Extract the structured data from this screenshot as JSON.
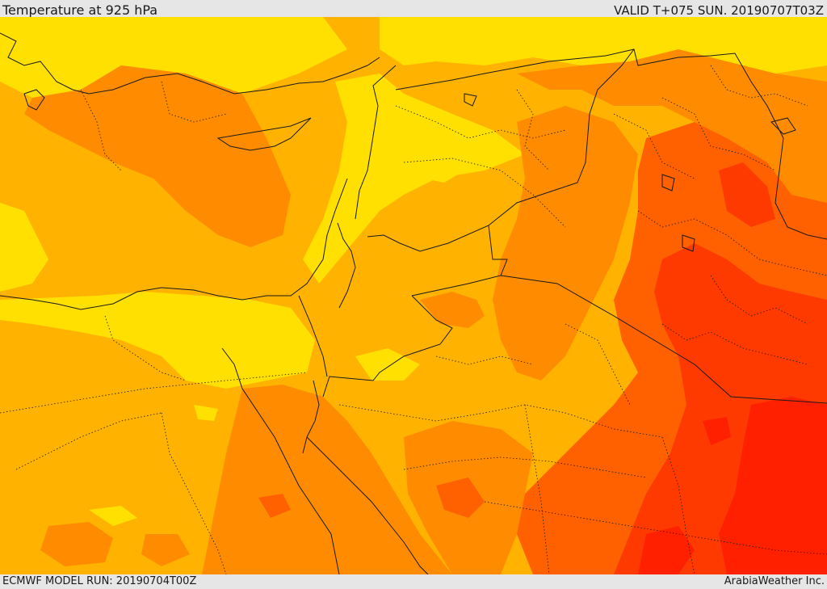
{
  "header": {
    "title": "Temperature at 925 hPa",
    "valid": "VALID T+075 SUN. 20190707T03Z"
  },
  "footer": {
    "model_run": "ECMWF MODEL RUN: 20190704T00Z",
    "brand": "ArabiaWeather Inc."
  },
  "map": {
    "field": "temperature-925hPa",
    "palette": {
      "light_yellow": "#ffe000",
      "gold": "#ffb300",
      "orange": "#ff8c00",
      "dark_orange": "#ff6000",
      "red_orange": "#ff3a00",
      "red": "#ff2000"
    },
    "border_color": "#1a1a1a"
  }
}
